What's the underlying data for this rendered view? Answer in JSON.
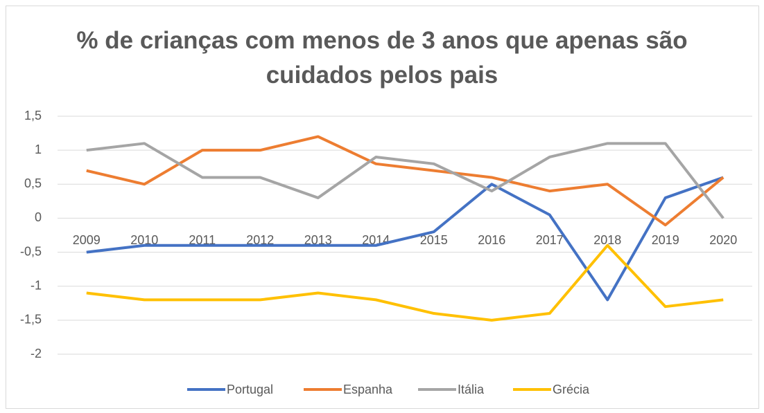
{
  "chart_data": {
    "type": "line",
    "title": "% de crianças com menos de 3 anos que apenas são cuidados pelos pais",
    "categories": [
      "2009",
      "2010",
      "2011",
      "2012",
      "2013",
      "2014",
      "2015",
      "2016",
      "2017",
      "2018",
      "2019",
      "2020"
    ],
    "series": [
      {
        "name": "Portugal",
        "color": "#4472c4",
        "values": [
          -0.5,
          -0.4,
          -0.4,
          -0.4,
          -0.4,
          -0.4,
          -0.2,
          0.5,
          0.05,
          -1.2,
          0.3,
          0.6
        ]
      },
      {
        "name": "Espanha",
        "color": "#ed7d31",
        "values": [
          0.7,
          0.5,
          1.0,
          1.0,
          1.2,
          0.8,
          0.7,
          0.6,
          0.4,
          0.5,
          -0.1,
          0.6
        ]
      },
      {
        "name": "Itália",
        "color": "#a5a5a5",
        "values": [
          1.0,
          1.1,
          0.6,
          0.6,
          0.3,
          0.9,
          0.8,
          0.4,
          0.9,
          1.1,
          1.1,
          0.0
        ]
      },
      {
        "name": "Grécia",
        "color": "#ffc000",
        "values": [
          -1.1,
          -1.2,
          -1.2,
          -1.2,
          -1.1,
          -1.2,
          -1.4,
          -1.5,
          -1.4,
          -0.4,
          -1.3,
          -1.2
        ]
      }
    ],
    "ylim": [
      -2,
      1.5
    ],
    "yticks": [
      {
        "value": 1.5,
        "label": "1,5"
      },
      1,
      {
        "value": 0.5,
        "label": "0,5"
      },
      0,
      {
        "value": -0.5,
        "label": "-0,5"
      },
      -1,
      {
        "value": -1.5,
        "label": "-1,5"
      },
      -2
    ],
    "grid": true,
    "legend": "bottom"
  }
}
